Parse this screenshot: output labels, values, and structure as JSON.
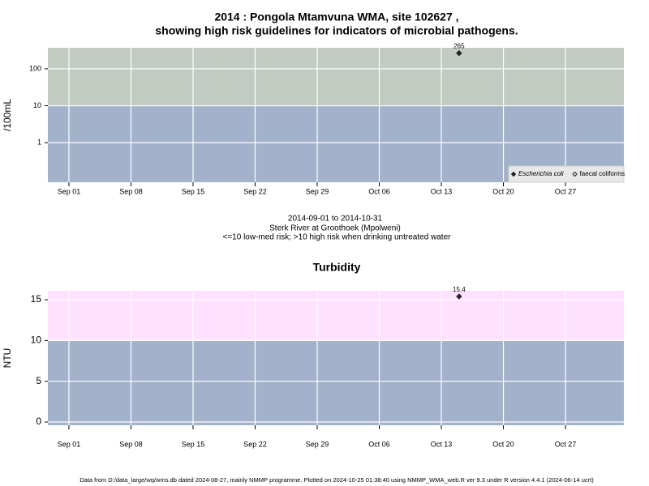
{
  "chart_data": [
    {
      "type": "scatter",
      "title": [
        "2014 : Pongola Mtamvuna WMA, site 102627 ,",
        "showing high risk guidelines for indicators of microbial pathogens."
      ],
      "y_label": "/100mL",
      "log_y": true,
      "xlim": [
        "2014-08-29T15:00",
        "2014-11-02T14:00"
      ],
      "xticks": [
        {
          "value": "2014-09-01",
          "label": "Sep 01"
        },
        {
          "value": "2014-09-08",
          "label": "Sep 08"
        },
        {
          "value": "2014-09-15",
          "label": "Sep 15"
        },
        {
          "value": "2014-09-22",
          "label": "Sep 22"
        },
        {
          "value": "2014-09-29",
          "label": "Sep 29"
        },
        {
          "value": "2014-10-06",
          "label": "Oct 06"
        },
        {
          "value": "2014-10-13",
          "label": "Oct 13"
        },
        {
          "value": "2014-10-20",
          "label": "Oct 20"
        },
        {
          "value": "2014-10-27",
          "label": "Oct 27"
        }
      ],
      "ylim": [
        0.085,
        370
      ],
      "yticks": [
        1,
        10,
        100
      ],
      "grid": true,
      "threshold": 10,
      "below_color": "#a2b2cb",
      "above_color": "#c1cbc1",
      "legend": "bottom-right",
      "series": [
        {
          "name": "Escherichia coli",
          "color": "#222222",
          "marker": "filled-diamond",
          "font_style": "italic",
          "x": [
            "2014-10-15"
          ],
          "values": [
            265
          ]
        },
        {
          "name": "faecal coliforms",
          "color": "#222222",
          "marker": "open-diamond",
          "font_style": "normal",
          "x": [],
          "values": []
        }
      ]
    },
    {
      "type": "scatter",
      "title": "Turbidity",
      "y_label": "NTU",
      "log_y": false,
      "xlim": [
        "2014-08-29T15:00",
        "2014-11-02T14:00"
      ],
      "xticks": [
        {
          "value": "2014-09-01",
          "label": "Sep 01"
        },
        {
          "value": "2014-09-08",
          "label": "Sep 08"
        },
        {
          "value": "2014-09-15",
          "label": "Sep 15"
        },
        {
          "value": "2014-09-22",
          "label": "Sep 22"
        },
        {
          "value": "2014-09-29",
          "label": "Sep 29"
        },
        {
          "value": "2014-10-06",
          "label": "Oct 06"
        },
        {
          "value": "2014-10-13",
          "label": "Oct 13"
        },
        {
          "value": "2014-10-20",
          "label": "Oct 20"
        },
        {
          "value": "2014-10-27",
          "label": "Oct 27"
        }
      ],
      "ylim": [
        -0.4,
        16.1
      ],
      "yticks": [
        0,
        5,
        10,
        15
      ],
      "grid": true,
      "threshold": 10,
      "below_color": "#a2b2cb",
      "above_color": "#ffe0ff",
      "series": [
        {
          "name": "Turbidity",
          "color": "#222222",
          "marker": "filled-diamond",
          "x": [
            "2014-10-15"
          ],
          "values": [
            15.4
          ]
        }
      ]
    }
  ],
  "notes": [
    "2014-09-01 to 2014-10-31",
    "Sterk River at Groothoek (Mpolweni)",
    "<=10 low-med risk; >10 high risk when drinking untreated water"
  ],
  "footer": "Data from D:/data_large/wq/wms.db dated 2024-08-27, mainly NMMP programme. Plotted on 2024-10-25 01:38:40 using NMMP_WMA_web.R ver 9.3 under R version 4.4.1 (2024-06-14 ucrt)"
}
